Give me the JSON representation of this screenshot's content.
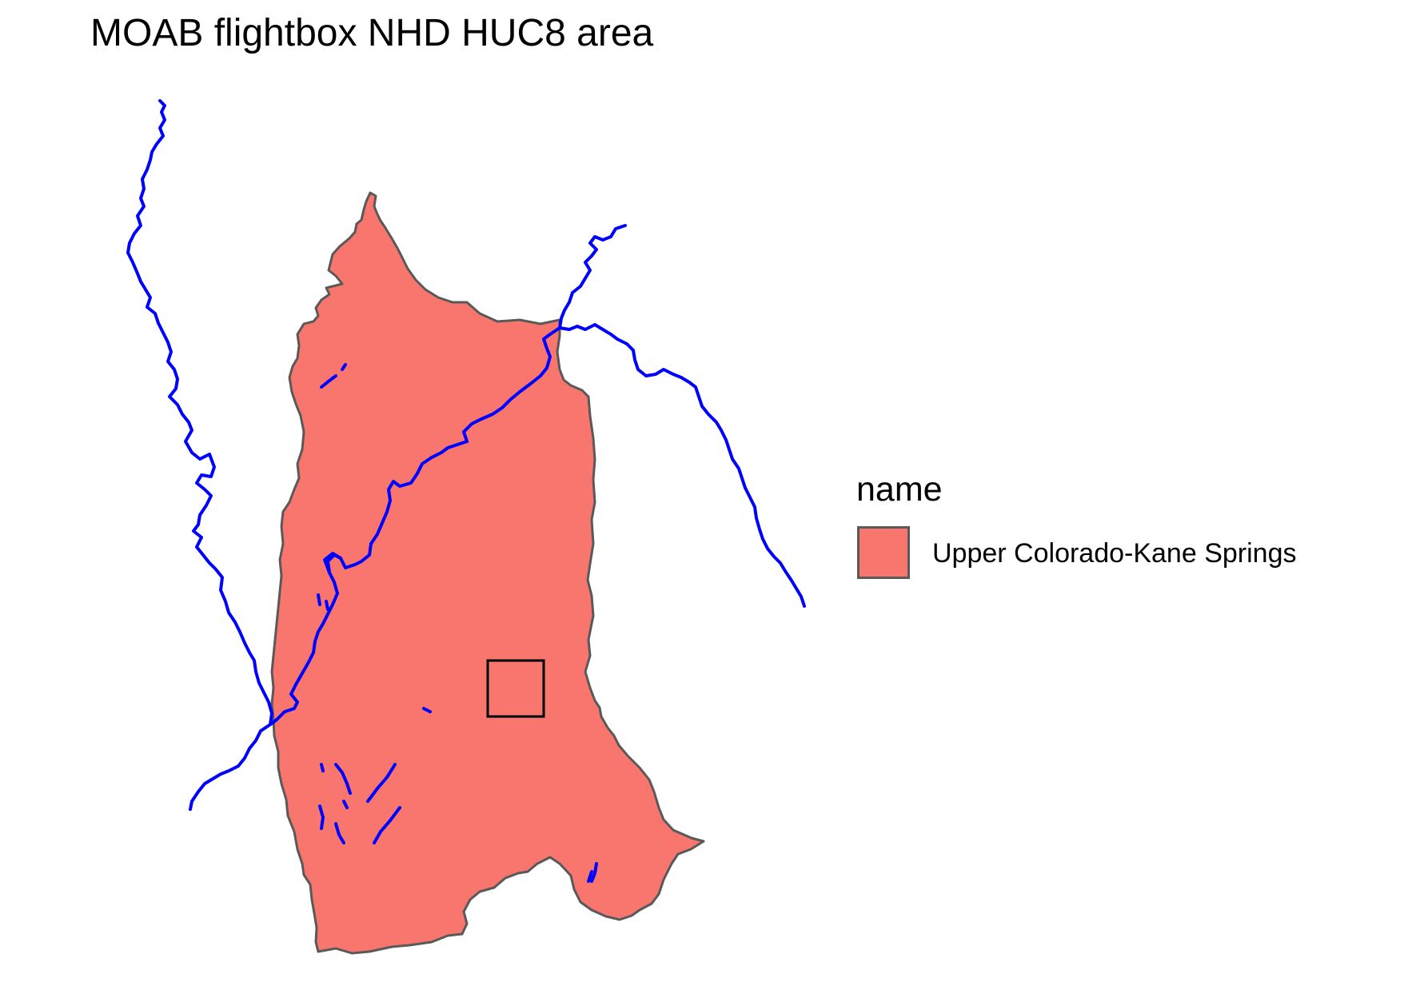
{
  "title": "MOAB flightbox NHD HUC8 area",
  "legend": {
    "title": "name",
    "entries": [
      {
        "label": "Upper Colorado-Kane Springs",
        "fill": "#F8766D",
        "border": "#595959"
      }
    ]
  },
  "layers": {
    "huc8_polygon": {
      "name": "Upper Colorado-Kane Springs",
      "fill": "#F8766D",
      "border": "#595959"
    },
    "rivers": {
      "color": "#0000FF"
    },
    "flightbox": {
      "stroke": "#000000",
      "fill": "none"
    }
  }
}
